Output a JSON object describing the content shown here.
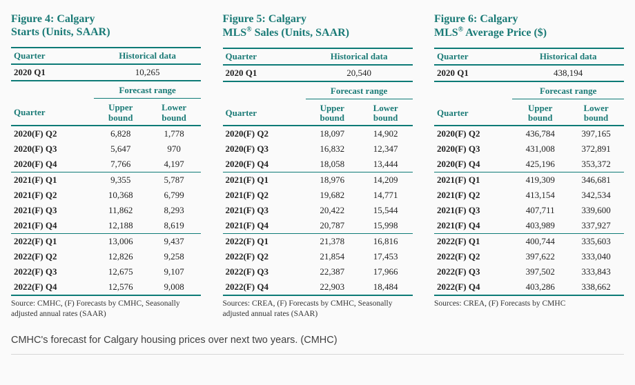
{
  "colors": {
    "teal": "#1a7a76",
    "rule": "#0c7a76",
    "text": "#222"
  },
  "panels": [
    {
      "title_line1": "Figure 4: Calgary",
      "title_line2": "Starts (Units, SAAR)",
      "hist_label": "Historical data",
      "quarter_label": "Quarter",
      "hist_quarter": "2020 Q1",
      "hist_value": "10,265",
      "forecast_label": "Forecast range",
      "upper_label": "Upper bound",
      "lower_label": "Lower bound",
      "rows": [
        {
          "q": "2020(F) Q2",
          "u": "6,828",
          "l": "1,778"
        },
        {
          "q": "2020(F) Q3",
          "u": "5,647",
          "l": "970"
        },
        {
          "q": "2020(F) Q4",
          "u": "7,766",
          "l": "4,197"
        },
        {
          "q": "2021(F) Q1",
          "u": "9,355",
          "l": "5,787"
        },
        {
          "q": "2021(F) Q2",
          "u": "10,368",
          "l": "6,799"
        },
        {
          "q": "2021(F) Q3",
          "u": "11,862",
          "l": "8,293"
        },
        {
          "q": "2021(F) Q4",
          "u": "12,188",
          "l": "8,619"
        },
        {
          "q": "2022(F) Q1",
          "u": "13,006",
          "l": "9,437"
        },
        {
          "q": "2022(F) Q2",
          "u": "12,826",
          "l": "9,258"
        },
        {
          "q": "2022(F) Q3",
          "u": "12,675",
          "l": "9,107"
        },
        {
          "q": "2022(F) Q4",
          "u": "12,576",
          "l": "9,008"
        }
      ],
      "source": "Source: CMHC, (F) Forecasts by CMHC, Seasonally adjusted annual rates (SAAR)"
    },
    {
      "title_line1": "Figure 5: Calgary",
      "title_line2": "MLS® Sales (Units, SAAR)",
      "hist_label": "Historical data",
      "quarter_label": "Quarter",
      "hist_quarter": "2020 Q1",
      "hist_value": "20,540",
      "forecast_label": "Forecast range",
      "upper_label": "Upper bound",
      "lower_label": "Lower bound",
      "rows": [
        {
          "q": "2020(F) Q2",
          "u": "18,097",
          "l": "14,902"
        },
        {
          "q": "2020(F) Q3",
          "u": "16,832",
          "l": "12,347"
        },
        {
          "q": "2020(F) Q4",
          "u": "18,058",
          "l": "13,444"
        },
        {
          "q": "2021(F) Q1",
          "u": "18,976",
          "l": "14,209"
        },
        {
          "q": "2021(F) Q2",
          "u": "19,682",
          "l": "14,771"
        },
        {
          "q": "2021(F) Q3",
          "u": "20,422",
          "l": "15,544"
        },
        {
          "q": "2021(F) Q4",
          "u": "20,787",
          "l": "15,998"
        },
        {
          "q": "2022(F) Q1",
          "u": "21,378",
          "l": "16,816"
        },
        {
          "q": "2022(F) Q2",
          "u": "21,854",
          "l": "17,453"
        },
        {
          "q": "2022(F) Q3",
          "u": "22,387",
          "l": "17,966"
        },
        {
          "q": "2022(F) Q4",
          "u": "22,903",
          "l": "18,484"
        }
      ],
      "source": "Sources: CREA, (F) Forecasts by CMHC, Seasonally adjusted annual rates (SAAR)"
    },
    {
      "title_line1": "Figure 6: Calgary",
      "title_line2": "MLS® Average Price ($)",
      "hist_label": "Historical data",
      "quarter_label": "Quarter",
      "hist_quarter": "2020 Q1",
      "hist_value": "438,194",
      "forecast_label": "Forecast range",
      "upper_label": "Upper bound",
      "lower_label": "Lower bound",
      "rows": [
        {
          "q": "2020(F) Q2",
          "u": "436,784",
          "l": "397,165"
        },
        {
          "q": "2020(F) Q3",
          "u": "431,008",
          "l": "372,891"
        },
        {
          "q": "2020(F) Q4",
          "u": "425,196",
          "l": "353,372"
        },
        {
          "q": "2021(F) Q1",
          "u": "419,309",
          "l": "346,681"
        },
        {
          "q": "2021(F) Q2",
          "u": "413,154",
          "l": "342,534"
        },
        {
          "q": "2021(F) Q3",
          "u": "407,711",
          "l": "339,600"
        },
        {
          "q": "2021(F) Q4",
          "u": "403,989",
          "l": "337,927"
        },
        {
          "q": "2022(F) Q1",
          "u": "400,744",
          "l": "335,603"
        },
        {
          "q": "2022(F) Q2",
          "u": "397,622",
          "l": "333,040"
        },
        {
          "q": "2022(F) Q3",
          "u": "397,502",
          "l": "333,843"
        },
        {
          "q": "2022(F) Q4",
          "u": "403,286",
          "l": "338,662"
        }
      ],
      "source": "Sources: CREA, (F) Forecasts by CMHC"
    }
  ],
  "caption": "CMHC's forecast for Calgary housing prices over next two years. (CMHC)"
}
